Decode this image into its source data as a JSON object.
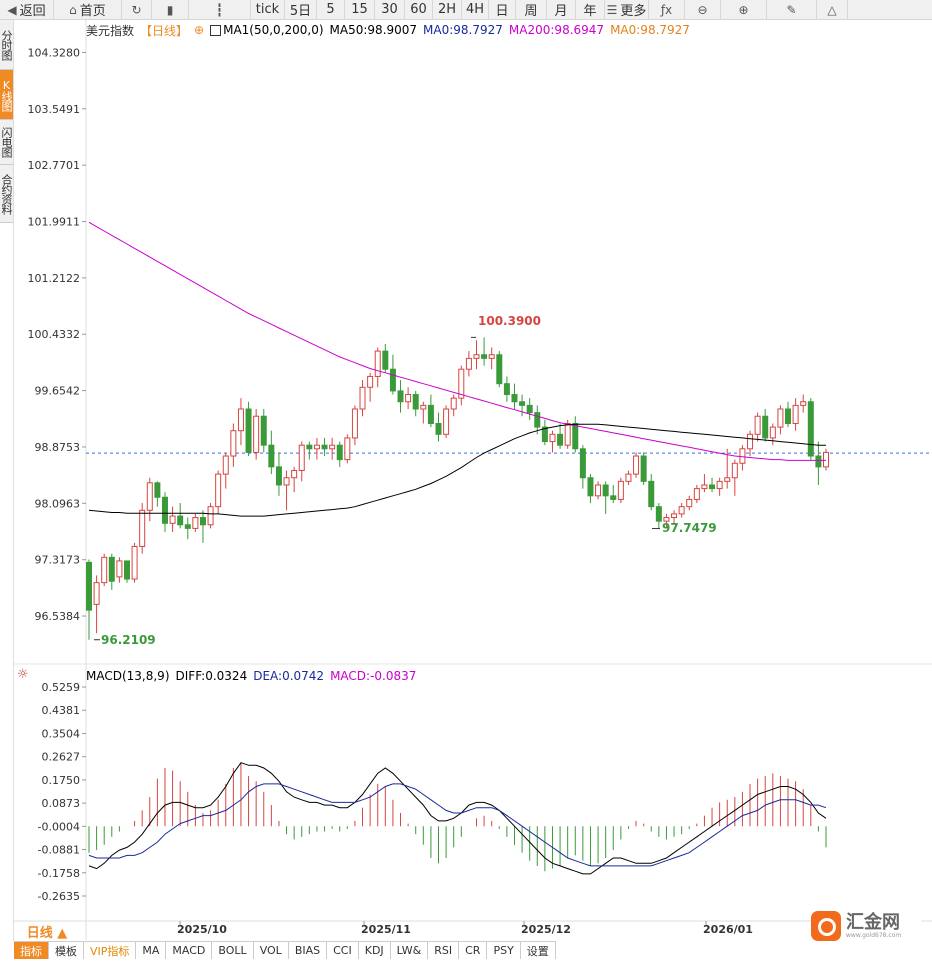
{
  "toolbar": {
    "items": [
      {
        "label": "返回",
        "icon": "arrow-back-icon"
      },
      {
        "label": "首页",
        "icon": "home-icon"
      },
      {
        "label": "",
        "icon": "refresh-icon"
      },
      {
        "label": "",
        "icon": "bar-chart-icon"
      },
      {
        "label": "",
        "icon": "candlestick-icon"
      },
      {
        "label": "tick",
        "icon": ""
      },
      {
        "label": "5日",
        "icon": ""
      },
      {
        "label": "5",
        "icon": ""
      },
      {
        "label": "15",
        "icon": ""
      },
      {
        "label": "30",
        "icon": ""
      },
      {
        "label": "60",
        "icon": ""
      },
      {
        "label": "2H",
        "icon": ""
      },
      {
        "label": "4H",
        "icon": ""
      },
      {
        "label": "日",
        "icon": ""
      },
      {
        "label": "周",
        "icon": ""
      },
      {
        "label": "月",
        "icon": ""
      },
      {
        "label": "年",
        "icon": ""
      },
      {
        "label": "更多",
        "icon": "menu-icon"
      },
      {
        "label": "",
        "icon": "function-icon"
      },
      {
        "label": "",
        "icon": "zoom-out-icon"
      },
      {
        "label": "",
        "icon": "zoom-in-icon"
      },
      {
        "label": "",
        "icon": "pencil-icon"
      },
      {
        "label": "",
        "icon": "triangle-icon"
      }
    ]
  },
  "side_tabs": [
    "分时图",
    "K线图",
    "闪电图",
    "合约资料"
  ],
  "legend_main": {
    "symbol": "美元指数",
    "period": "【日线】",
    "ma_name": "MA1(50,0,200,0)",
    "ma50": "MA50:98.9007",
    "ma0a": "MA0:98.7927",
    "ma200": "MA200:98.6947",
    "ma0b": "MA0:98.7927"
  },
  "legend_macd": {
    "name": "MACD(13,8,9)",
    "diff": "DIFF:0.0324",
    "dea": "DEA:0.0742",
    "macd": "MACD:-0.0837"
  },
  "period_selector": "日线 ▲",
  "indicator_tabs": [
    "指标",
    "模板",
    "VIP指标",
    "MA",
    "MACD",
    "BOLL",
    "VOL",
    "BIAS",
    "CCI",
    "KDJ",
    "LW&",
    "RSI",
    "CR",
    "PSY",
    "设置"
  ],
  "logo": {
    "name": "汇金网",
    "url_text": "www.gold678.com"
  },
  "colors": {
    "up": "#d64541",
    "down": "#3a9a3a",
    "ma50": "#000000",
    "ma200": "#cc00cc",
    "accent": "#f08a24",
    "diff": "#000000",
    "dea": "#1a2a9a"
  },
  "chart_data": {
    "type": "candlestick",
    "price_axis_labels": [
      "104.3280",
      "103.5491",
      "102.7701",
      "101.9911",
      "101.2122",
      "100.4332",
      "99.6542",
      "98.8753",
      "98.0963",
      "97.3173",
      "96.5384"
    ],
    "macd_axis_labels": [
      "0.5259",
      "0.4381",
      "0.3504",
      "0.2627",
      "0.1750",
      "0.0873",
      "-0.0004",
      "-0.0881",
      "-0.1758",
      "-0.2635"
    ],
    "date_labels": [
      "2025/10",
      "2025/11",
      "2025/12",
      "2026/01"
    ],
    "annotations": {
      "high": "100.3900",
      "low_left": "96.2109",
      "low_mid": "97.7479"
    },
    "last_price": 98.79,
    "ohlc": [
      [
        97.28,
        97.32,
        96.21,
        96.62
      ],
      [
        96.7,
        97.1,
        96.3,
        97.0
      ],
      [
        97.0,
        97.4,
        96.95,
        97.35
      ],
      [
        97.35,
        97.4,
        96.9,
        97.02
      ],
      [
        97.08,
        97.35,
        97.0,
        97.3
      ],
      [
        97.3,
        97.3,
        97.0,
        97.05
      ],
      [
        97.05,
        97.55,
        97.0,
        97.5
      ],
      [
        97.5,
        98.1,
        97.4,
        98.0
      ],
      [
        98.0,
        98.45,
        97.85,
        98.38
      ],
      [
        98.38,
        98.4,
        98.05,
        98.18
      ],
      [
        98.18,
        98.25,
        97.7,
        97.82
      ],
      [
        97.82,
        98.05,
        97.7,
        97.92
      ],
      [
        97.92,
        98.1,
        97.75,
        97.8
      ],
      [
        97.8,
        97.9,
        97.6,
        97.75
      ],
      [
        97.75,
        97.95,
        97.7,
        97.9
      ],
      [
        97.9,
        98.0,
        97.55,
        97.8
      ],
      [
        97.8,
        98.1,
        97.75,
        98.05
      ],
      [
        98.05,
        98.55,
        97.95,
        98.5
      ],
      [
        98.5,
        98.8,
        98.3,
        98.75
      ],
      [
        98.75,
        99.2,
        98.6,
        99.1
      ],
      [
        99.1,
        99.55,
        98.9,
        99.4
      ],
      [
        99.4,
        99.5,
        98.75,
        98.8
      ],
      [
        98.8,
        99.4,
        98.7,
        99.3
      ],
      [
        99.3,
        99.4,
        98.8,
        98.9
      ],
      [
        98.9,
        99.1,
        98.5,
        98.6
      ],
      [
        98.6,
        98.8,
        98.2,
        98.35
      ],
      [
        98.35,
        98.55,
        98.0,
        98.45
      ],
      [
        98.45,
        98.6,
        98.25,
        98.55
      ],
      [
        98.55,
        98.95,
        98.4,
        98.9
      ],
      [
        98.9,
        98.95,
        98.7,
        98.85
      ],
      [
        98.85,
        99.0,
        98.7,
        98.9
      ],
      [
        98.9,
        99.0,
        98.75,
        98.85
      ],
      [
        98.85,
        99.0,
        98.7,
        98.9
      ],
      [
        98.9,
        98.95,
        98.6,
        98.7
      ],
      [
        98.7,
        99.05,
        98.65,
        99.0
      ],
      [
        99.0,
        99.45,
        98.9,
        99.4
      ],
      [
        99.4,
        99.8,
        99.3,
        99.7
      ],
      [
        99.7,
        99.9,
        99.5,
        99.85
      ],
      [
        99.85,
        100.25,
        99.7,
        100.2
      ],
      [
        100.2,
        100.3,
        99.9,
        99.95
      ],
      [
        99.95,
        100.15,
        99.6,
        99.65
      ],
      [
        99.65,
        99.8,
        99.35,
        99.5
      ],
      [
        99.5,
        99.7,
        99.4,
        99.6
      ],
      [
        99.6,
        99.65,
        99.3,
        99.4
      ],
      [
        99.4,
        99.5,
        99.2,
        99.45
      ],
      [
        99.45,
        99.6,
        99.15,
        99.2
      ],
      [
        99.2,
        99.35,
        98.95,
        99.05
      ],
      [
        99.05,
        99.45,
        99.0,
        99.4
      ],
      [
        99.4,
        99.6,
        99.3,
        99.55
      ],
      [
        99.55,
        100.0,
        99.45,
        99.95
      ],
      [
        99.95,
        100.2,
        99.85,
        100.1
      ],
      [
        100.1,
        100.35,
        99.95,
        100.15
      ],
      [
        100.15,
        100.39,
        100.0,
        100.1
      ],
      [
        100.1,
        100.25,
        99.95,
        100.15
      ],
      [
        100.15,
        100.2,
        99.7,
        99.75
      ],
      [
        99.75,
        99.85,
        99.5,
        99.6
      ],
      [
        99.6,
        99.75,
        99.4,
        99.5
      ],
      [
        99.5,
        99.6,
        99.3,
        99.45
      ],
      [
        99.45,
        99.55,
        99.25,
        99.35
      ],
      [
        99.35,
        99.45,
        99.05,
        99.15
      ],
      [
        99.15,
        99.25,
        98.9,
        98.95
      ],
      [
        98.95,
        99.1,
        98.8,
        99.05
      ],
      [
        99.05,
        99.2,
        98.85,
        98.9
      ],
      [
        98.9,
        99.25,
        98.85,
        99.2
      ],
      [
        99.2,
        99.3,
        98.8,
        98.85
      ],
      [
        98.85,
        98.9,
        98.3,
        98.45
      ],
      [
        98.45,
        98.5,
        98.1,
        98.2
      ],
      [
        98.2,
        98.4,
        98.15,
        98.35
      ],
      [
        98.35,
        98.4,
        97.95,
        98.2
      ],
      [
        98.2,
        98.35,
        98.1,
        98.15
      ],
      [
        98.15,
        98.45,
        98.1,
        98.4
      ],
      [
        98.4,
        98.55,
        98.35,
        98.5
      ],
      [
        98.5,
        98.8,
        98.45,
        98.75
      ],
      [
        98.75,
        98.8,
        98.35,
        98.4
      ],
      [
        98.4,
        98.5,
        98.0,
        98.05
      ],
      [
        98.05,
        98.1,
        97.75,
        97.85
      ],
      [
        97.85,
        97.95,
        97.75,
        97.9
      ],
      [
        97.9,
        98.0,
        97.8,
        97.95
      ],
      [
        97.95,
        98.1,
        97.9,
        98.05
      ],
      [
        98.05,
        98.2,
        98.0,
        98.15
      ],
      [
        98.15,
        98.35,
        98.1,
        98.3
      ],
      [
        98.3,
        98.5,
        98.25,
        98.35
      ],
      [
        98.35,
        98.45,
        98.25,
        98.3
      ],
      [
        98.3,
        98.45,
        98.2,
        98.4
      ],
      [
        98.4,
        98.85,
        98.3,
        98.45
      ],
      [
        98.45,
        98.7,
        98.2,
        98.65
      ],
      [
        98.65,
        98.9,
        98.55,
        98.85
      ],
      [
        98.85,
        99.1,
        98.75,
        99.05
      ],
      [
        99.05,
        99.35,
        98.95,
        99.3
      ],
      [
        99.3,
        99.4,
        98.95,
        99.0
      ],
      [
        99.0,
        99.2,
        98.9,
        99.15
      ],
      [
        99.15,
        99.45,
        99.05,
        99.4
      ],
      [
        99.4,
        99.5,
        99.15,
        99.2
      ],
      [
        99.2,
        99.55,
        99.1,
        99.45
      ],
      [
        99.45,
        99.6,
        99.35,
        99.5
      ],
      [
        99.5,
        99.55,
        98.7,
        98.75
      ],
      [
        98.75,
        98.95,
        98.35,
        98.6
      ],
      [
        98.6,
        98.85,
        98.55,
        98.8
      ]
    ],
    "ma50": [
      98.0,
      97.99,
      97.98,
      97.97,
      97.97,
      97.96,
      97.96,
      97.96,
      97.96,
      97.96,
      97.96,
      97.96,
      97.96,
      97.96,
      97.96,
      97.96,
      97.95,
      97.95,
      97.94,
      97.93,
      97.92,
      97.92,
      97.92,
      97.92,
      97.93,
      97.94,
      97.95,
      97.96,
      97.97,
      97.98,
      97.99,
      98.0,
      98.01,
      98.02,
      98.03,
      98.05,
      98.08,
      98.11,
      98.14,
      98.17,
      98.2,
      98.23,
      98.26,
      98.29,
      98.33,
      98.37,
      98.42,
      98.47,
      98.53,
      98.59,
      98.66,
      98.73,
      98.79,
      98.84,
      98.89,
      98.94,
      98.99,
      99.03,
      99.07,
      99.1,
      99.13,
      99.15,
      99.17,
      99.18,
      99.19,
      99.19,
      99.19,
      99.19,
      99.18,
      99.17,
      99.16,
      99.15,
      99.14,
      99.13,
      99.12,
      99.11,
      99.1,
      99.09,
      99.08,
      99.07,
      99.06,
      99.05,
      99.04,
      99.03,
      99.02,
      99.01,
      99.0,
      98.99,
      98.98,
      98.97,
      98.96,
      98.95,
      98.94,
      98.93,
      98.92,
      98.91,
      98.9,
      98.9
    ],
    "ma200": [
      101.98,
      101.92,
      101.86,
      101.8,
      101.74,
      101.68,
      101.62,
      101.56,
      101.5,
      101.44,
      101.38,
      101.32,
      101.26,
      101.2,
      101.14,
      101.08,
      101.02,
      100.96,
      100.9,
      100.84,
      100.78,
      100.72,
      100.67,
      100.62,
      100.57,
      100.52,
      100.47,
      100.42,
      100.37,
      100.32,
      100.27,
      100.22,
      100.17,
      100.12,
      100.08,
      100.04,
      100.0,
      99.96,
      99.93,
      99.9,
      99.87,
      99.84,
      99.81,
      99.78,
      99.75,
      99.72,
      99.69,
      99.66,
      99.63,
      99.6,
      99.57,
      99.54,
      99.51,
      99.48,
      99.45,
      99.42,
      99.39,
      99.36,
      99.33,
      99.3,
      99.27,
      99.24,
      99.21,
      99.19,
      99.17,
      99.15,
      99.13,
      99.11,
      99.09,
      99.07,
      99.05,
      99.03,
      99.01,
      98.99,
      98.97,
      98.95,
      98.93,
      98.91,
      98.89,
      98.87,
      98.85,
      98.83,
      98.81,
      98.79,
      98.77,
      98.75,
      98.74,
      98.73,
      98.72,
      98.71,
      98.7,
      98.7,
      98.69,
      98.69,
      98.69,
      98.69,
      98.69,
      98.69
    ],
    "macd_hist": [
      -0.1,
      -0.09,
      -0.07,
      -0.04,
      -0.02,
      0.0,
      0.02,
      0.06,
      0.11,
      0.18,
      0.22,
      0.21,
      0.17,
      0.13,
      0.08,
      0.05,
      0.06,
      0.1,
      0.16,
      0.22,
      0.24,
      0.19,
      0.17,
      0.13,
      0.08,
      0.02,
      -0.03,
      -0.05,
      -0.04,
      -0.03,
      -0.02,
      -0.02,
      -0.01,
      -0.02,
      -0.01,
      0.02,
      0.07,
      0.12,
      0.16,
      0.15,
      0.1,
      0.05,
      0.01,
      -0.03,
      -0.07,
      -0.12,
      -0.14,
      -0.12,
      -0.08,
      -0.04,
      0.0,
      0.03,
      0.04,
      0.02,
      -0.01,
      -0.04,
      -0.07,
      -0.1,
      -0.13,
      -0.15,
      -0.17,
      -0.16,
      -0.15,
      -0.12,
      -0.11,
      -0.13,
      -0.15,
      -0.14,
      -0.12,
      -0.09,
      -0.05,
      -0.01,
      0.02,
      0.01,
      -0.02,
      -0.04,
      -0.05,
      -0.04,
      -0.03,
      -0.01,
      0.01,
      0.04,
      0.07,
      0.09,
      0.1,
      0.11,
      0.13,
      0.16,
      0.18,
      0.19,
      0.2,
      0.19,
      0.18,
      0.17,
      0.14,
      0.08,
      -0.02,
      -0.08
    ],
    "diff": [
      -0.15,
      -0.16,
      -0.14,
      -0.11,
      -0.09,
      -0.08,
      -0.06,
      -0.03,
      0.01,
      0.05,
      0.08,
      0.09,
      0.09,
      0.08,
      0.07,
      0.07,
      0.08,
      0.11,
      0.15,
      0.2,
      0.24,
      0.23,
      0.23,
      0.22,
      0.2,
      0.17,
      0.13,
      0.11,
      0.1,
      0.09,
      0.09,
      0.08,
      0.08,
      0.07,
      0.07,
      0.09,
      0.12,
      0.16,
      0.2,
      0.22,
      0.2,
      0.17,
      0.14,
      0.11,
      0.08,
      0.04,
      0.02,
      0.02,
      0.03,
      0.05,
      0.08,
      0.09,
      0.09,
      0.08,
      0.06,
      0.03,
      0.0,
      -0.03,
      -0.06,
      -0.09,
      -0.12,
      -0.14,
      -0.15,
      -0.16,
      -0.17,
      -0.18,
      -0.18,
      -0.16,
      -0.14,
      -0.12,
      -0.12,
      -0.13,
      -0.14,
      -0.14,
      -0.14,
      -0.13,
      -0.12,
      -0.1,
      -0.08,
      -0.06,
      -0.04,
      -0.02,
      0.0,
      0.02,
      0.04,
      0.06,
      0.08,
      0.1,
      0.12,
      0.13,
      0.14,
      0.15,
      0.15,
      0.14,
      0.12,
      0.09,
      0.05,
      0.03
    ],
    "dea": [
      -0.11,
      -0.12,
      -0.12,
      -0.12,
      -0.12,
      -0.11,
      -0.11,
      -0.1,
      -0.08,
      -0.06,
      -0.03,
      -0.01,
      0.01,
      0.02,
      0.03,
      0.04,
      0.04,
      0.05,
      0.06,
      0.08,
      0.1,
      0.13,
      0.15,
      0.16,
      0.16,
      0.16,
      0.15,
      0.14,
      0.13,
      0.12,
      0.11,
      0.1,
      0.09,
      0.09,
      0.09,
      0.09,
      0.1,
      0.11,
      0.13,
      0.15,
      0.16,
      0.16,
      0.15,
      0.14,
      0.12,
      0.1,
      0.08,
      0.06,
      0.05,
      0.05,
      0.06,
      0.07,
      0.07,
      0.07,
      0.06,
      0.04,
      0.02,
      0.0,
      -0.02,
      -0.04,
      -0.06,
      -0.08,
      -0.1,
      -0.12,
      -0.13,
      -0.14,
      -0.15,
      -0.15,
      -0.15,
      -0.15,
      -0.15,
      -0.15,
      -0.15,
      -0.15,
      -0.15,
      -0.14,
      -0.13,
      -0.12,
      -0.11,
      -0.1,
      -0.08,
      -0.06,
      -0.04,
      -0.02,
      0.0,
      0.02,
      0.04,
      0.05,
      0.06,
      0.08,
      0.09,
      0.1,
      0.1,
      0.1,
      0.09,
      0.08,
      0.08,
      0.07
    ]
  }
}
